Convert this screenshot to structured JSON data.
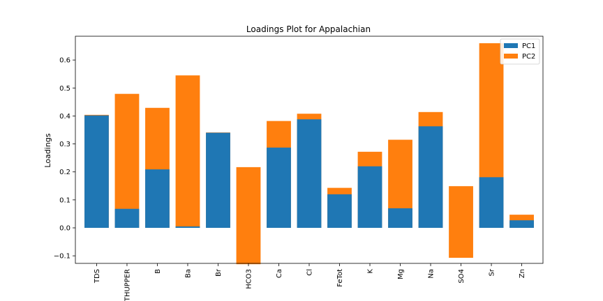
{
  "chart_data": {
    "type": "bar",
    "title": "Loadings Plot for Appalachian",
    "xlabel": "",
    "ylabel": "Loadings",
    "categories": [
      "TDS",
      "THUPPER",
      "B",
      "Ba",
      "Br",
      "HCO3",
      "Ca",
      "Cl",
      "FeTot",
      "K",
      "Mg",
      "Na",
      "SO4",
      "Sr",
      "Zn"
    ],
    "series": [
      {
        "name": "PC1",
        "color": "#1f77b4",
        "values": [
          0.402,
          0.068,
          0.209,
          0.005,
          0.34,
          0.0,
          0.287,
          0.388,
          0.12,
          0.22,
          0.07,
          0.363,
          0.0,
          0.181,
          0.027
        ]
      },
      {
        "name": "PC2",
        "color": "#ff7f0e",
        "values": [
          0.404,
          0.479,
          0.429,
          0.545,
          0.341,
          0.217,
          0.382,
          0.408,
          0.143,
          0.272,
          0.315,
          0.414,
          0.149,
          0.66,
          0.047
        ]
      }
    ],
    "extra_values_negative": [
      0,
      0,
      0,
      0,
      0,
      -0.13,
      0,
      0,
      0,
      0,
      0,
      0,
      -0.107,
      0,
      0
    ],
    "ylim": [
      -0.127,
      0.685
    ],
    "yticks": [
      -0.1,
      0.0,
      0.1,
      0.2,
      0.3,
      0.4,
      0.5,
      0.6
    ],
    "ytick_labels": [
      "−0.1",
      "0.0",
      "0.1",
      "0.2",
      "0.3",
      "0.4",
      "0.5",
      "0.6"
    ],
    "legend_position": "top-right",
    "grid": false
  }
}
